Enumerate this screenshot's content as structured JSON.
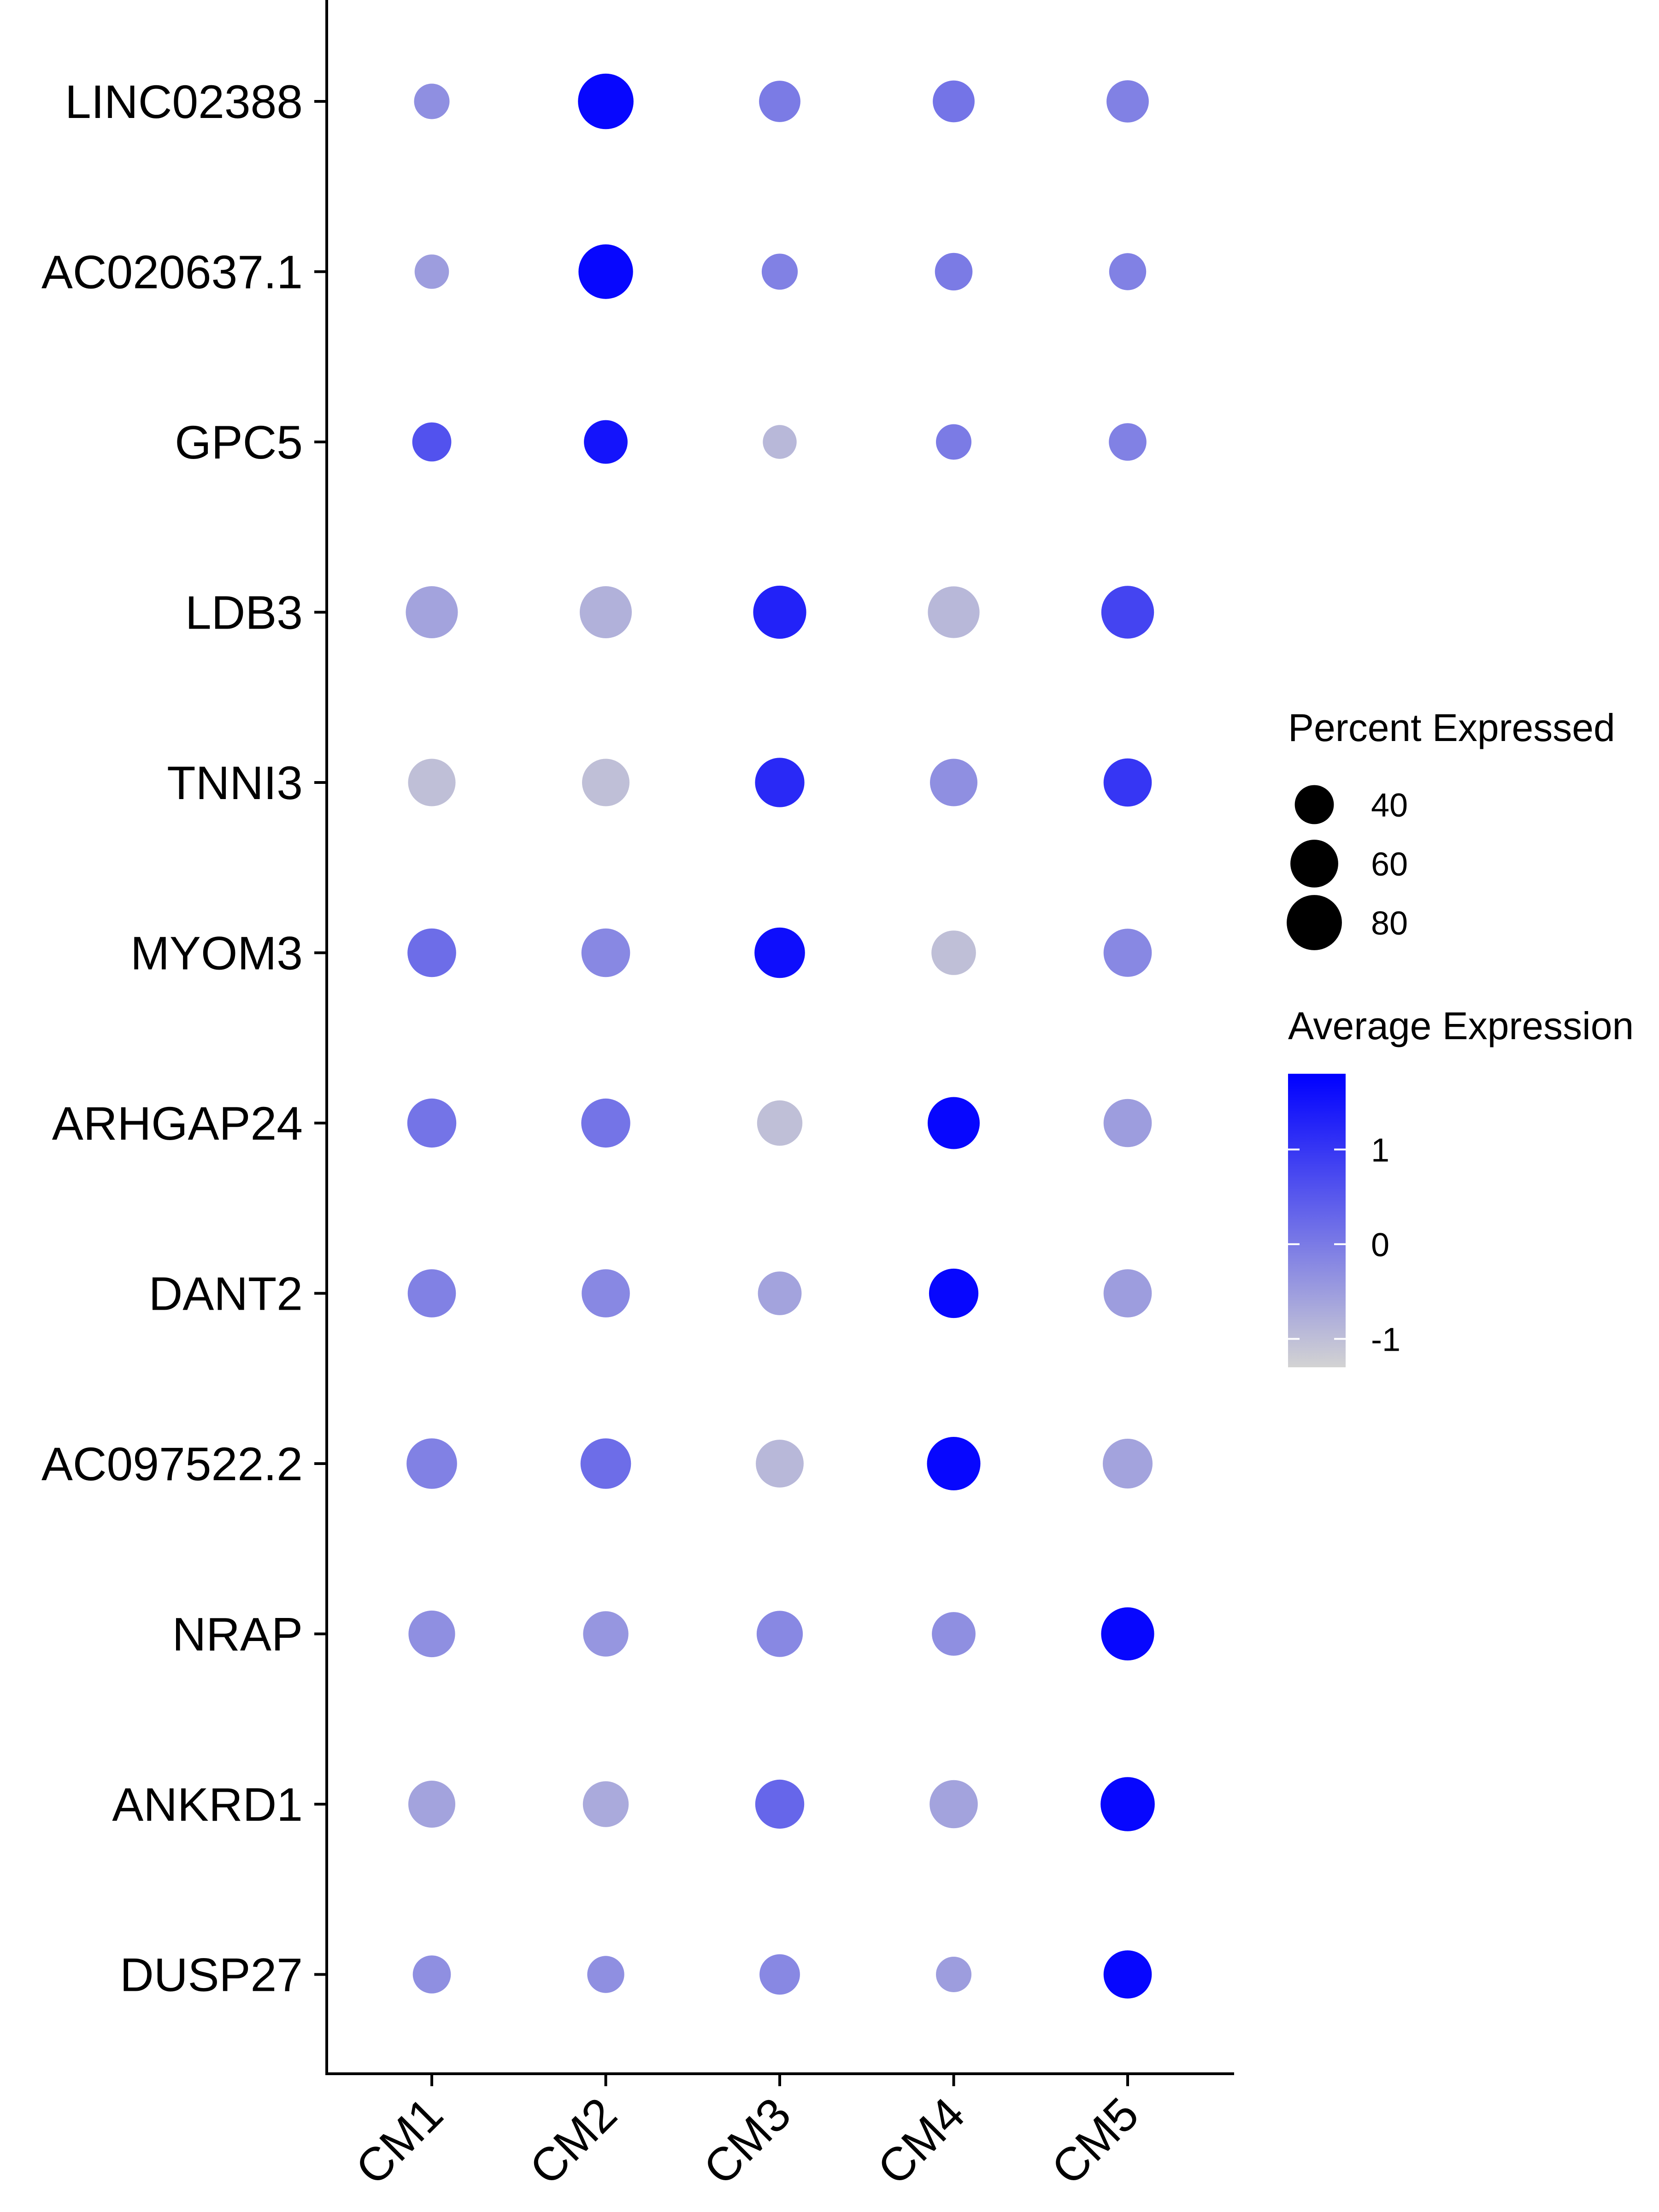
{
  "chart_data": {
    "type": "dotplot",
    "title": "",
    "xlabel": "",
    "ylabel": "",
    "categories": [
      "CM1",
      "CM2",
      "CM3",
      "CM4",
      "CM5"
    ],
    "genes": [
      "LINC02388",
      "AC020637.1",
      "GPC5",
      "LDB3",
      "TNNI3",
      "MYOM3",
      "ARHGAP24",
      "DANT2",
      "AC097522.2",
      "NRAP",
      "ANKRD1",
      "DUSP27"
    ],
    "percent_expressed": [
      [
        33,
        81,
        45,
        46,
        47
      ],
      [
        31,
        78,
        34,
        37,
        36
      ],
      [
        40,
        50,
        30,
        33,
        37
      ],
      [
        71,
        71,
        74,
        70,
        73
      ],
      [
        59,
        59,
        64,
        59,
        61
      ],
      [
        62,
        62,
        67,
        52,
        61
      ],
      [
        63,
        63,
        54,
        71,
        61
      ],
      [
        61,
        61,
        50,
        64,
        61
      ],
      [
        67,
        67,
        60,
        75,
        65
      ],
      [
        57,
        54,
        56,
        50,
        74
      ],
      [
        58,
        55,
        63,
        61,
        77
      ],
      [
        38,
        36,
        43,
        33,
        61
      ]
    ],
    "average_expression": [
      [
        -0.3,
        1.7,
        0.0,
        0.1,
        -0.1
      ],
      [
        -0.5,
        1.7,
        -0.1,
        0.0,
        -0.1
      ],
      [
        0.6,
        1.5,
        -0.9,
        0.0,
        -0.1
      ],
      [
        -0.6,
        -0.8,
        1.3,
        -0.9,
        0.8
      ],
      [
        -1.0,
        -1.0,
        1.2,
        -0.3,
        1.0
      ],
      [
        0.2,
        -0.2,
        1.6,
        -1.0,
        -0.2
      ],
      [
        0.1,
        0.1,
        -1.0,
        1.7,
        -0.5
      ],
      [
        -0.1,
        -0.2,
        -0.6,
        1.7,
        -0.5
      ],
      [
        -0.1,
        0.2,
        -0.9,
        1.7,
        -0.6
      ],
      [
        -0.3,
        -0.4,
        -0.2,
        -0.3,
        1.7
      ],
      [
        -0.6,
        -0.7,
        0.3,
        -0.6,
        1.7
      ],
      [
        -0.3,
        -0.3,
        -0.2,
        -0.5,
        1.7
      ]
    ],
    "size_legend": {
      "title": "Percent Expressed",
      "values": [
        40,
        60,
        80
      ],
      "labels": [
        "40",
        "60",
        "80"
      ]
    },
    "color_legend": {
      "title": "Average Expression",
      "ticks": [
        1,
        0,
        -1
      ],
      "labels": [
        "1",
        "0",
        "-1"
      ],
      "range": [
        -1.3,
        1.8
      ],
      "low_color": "#d3d3d3",
      "high_color": "#0000ff"
    }
  }
}
